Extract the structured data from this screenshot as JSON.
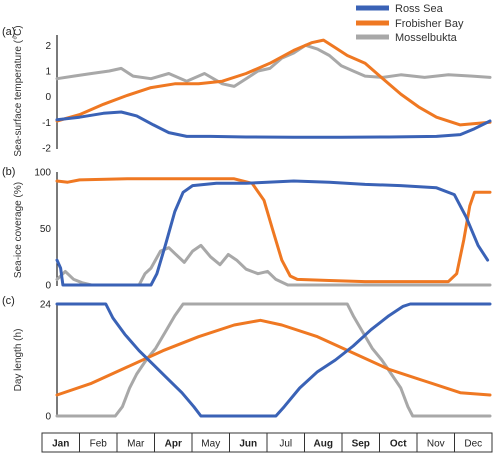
{
  "colors": {
    "ross": "#3a62b6",
    "frob": "#ef7822",
    "moss": "#a8a8a8"
  },
  "legend": [
    "Ross Sea",
    "Frobisher Bay",
    "Mosselbukta"
  ],
  "months": [
    "Jan",
    "Feb",
    "Mar",
    "Apr",
    "May",
    "Jun",
    "Jul",
    "Aug",
    "Sep",
    "Oct",
    "Nov",
    "Dec"
  ],
  "bold_months": [
    "Jan",
    "Apr",
    "Jun",
    "Aug",
    "Sep",
    "Oct"
  ],
  "chart_data": [
    {
      "type": "line",
      "panel": "(a)",
      "ylabel": "Sea-surface temperature (°C)",
      "ylim": [
        -2,
        2.4
      ],
      "yticks": [
        -2,
        -1,
        0,
        1,
        2
      ],
      "x_unit": "day of year",
      "xlim": [
        1,
        365
      ],
      "series": [
        {
          "name": "Ross Sea",
          "points": [
            [
              1,
              -0.9
            ],
            [
              20,
              -0.8
            ],
            [
              40,
              -0.65
            ],
            [
              55,
              -0.6
            ],
            [
              68,
              -0.75
            ],
            [
              82,
              -1.1
            ],
            [
              95,
              -1.4
            ],
            [
              110,
              -1.55
            ],
            [
              130,
              -1.55
            ],
            [
              160,
              -1.57
            ],
            [
              200,
              -1.58
            ],
            [
              240,
              -1.58
            ],
            [
              280,
              -1.57
            ],
            [
              320,
              -1.55
            ],
            [
              340,
              -1.48
            ],
            [
              352,
              -1.25
            ],
            [
              365,
              -0.95
            ]
          ]
        },
        {
          "name": "Frobisher Bay",
          "points": [
            [
              1,
              -0.95
            ],
            [
              20,
              -0.7
            ],
            [
              40,
              -0.3
            ],
            [
              60,
              0.05
            ],
            [
              80,
              0.35
            ],
            [
              100,
              0.5
            ],
            [
              120,
              0.5
            ],
            [
              140,
              0.6
            ],
            [
              160,
              0.9
            ],
            [
              180,
              1.3
            ],
            [
              200,
              1.8
            ],
            [
              215,
              2.1
            ],
            [
              225,
              2.2
            ],
            [
              235,
              1.9
            ],
            [
              245,
              1.6
            ],
            [
              260,
              1.3
            ],
            [
              275,
              0.7
            ],
            [
              290,
              0.1
            ],
            [
              305,
              -0.4
            ],
            [
              320,
              -0.8
            ],
            [
              340,
              -1.1
            ],
            [
              365,
              -1.0
            ]
          ]
        },
        {
          "name": "Mosselbukta",
          "points": [
            [
              1,
              0.7
            ],
            [
              15,
              0.8
            ],
            [
              30,
              0.9
            ],
            [
              45,
              1.0
            ],
            [
              55,
              1.1
            ],
            [
              65,
              0.8
            ],
            [
              80,
              0.7
            ],
            [
              95,
              0.9
            ],
            [
              110,
              0.6
            ],
            [
              125,
              0.9
            ],
            [
              140,
              0.5
            ],
            [
              150,
              0.4
            ],
            [
              160,
              0.7
            ],
            [
              170,
              1.0
            ],
            [
              180,
              1.1
            ],
            [
              190,
              1.5
            ],
            [
              200,
              1.7
            ],
            [
              210,
              2.0
            ],
            [
              220,
              1.85
            ],
            [
              230,
              1.6
            ],
            [
              240,
              1.2
            ],
            [
              250,
              1.0
            ],
            [
              260,
              0.8
            ],
            [
              275,
              0.75
            ],
            [
              290,
              0.85
            ],
            [
              310,
              0.75
            ],
            [
              330,
              0.85
            ],
            [
              350,
              0.8
            ],
            [
              365,
              0.75
            ]
          ]
        }
      ]
    },
    {
      "type": "line",
      "panel": "(b)",
      "ylabel": "Sea-ice coverage (%)",
      "ylim": [
        0,
        100
      ],
      "yticks": [
        0,
        50,
        100
      ],
      "x_unit": "day of year",
      "xlim": [
        1,
        365
      ],
      "series": [
        {
          "name": "Ross Sea",
          "points": [
            [
              1,
              22
            ],
            [
              4,
              15
            ],
            [
              6,
              0
            ],
            [
              80,
              0
            ],
            [
              85,
              10
            ],
            [
              92,
              35
            ],
            [
              100,
              65
            ],
            [
              107,
              82
            ],
            [
              115,
              88
            ],
            [
              135,
              90
            ],
            [
              160,
              90
            ],
            [
              200,
              92
            ],
            [
              230,
              91
            ],
            [
              260,
              89
            ],
            [
              290,
              88
            ],
            [
              320,
              86
            ],
            [
              335,
              80
            ],
            [
              345,
              60
            ],
            [
              355,
              35
            ],
            [
              363,
              22
            ]
          ]
        },
        {
          "name": "Frobisher Bay",
          "points": [
            [
              1,
              92
            ],
            [
              10,
              91
            ],
            [
              20,
              93
            ],
            [
              60,
              94
            ],
            [
              100,
              94
            ],
            [
              150,
              94
            ],
            [
              165,
              90
            ],
            [
              175,
              75
            ],
            [
              182,
              50
            ],
            [
              190,
              22
            ],
            [
              197,
              8
            ],
            [
              203,
              5
            ],
            [
              230,
              4
            ],
            [
              260,
              3
            ],
            [
              300,
              3
            ],
            [
              330,
              3
            ],
            [
              337,
              10
            ],
            [
              343,
              40
            ],
            [
              348,
              70
            ],
            [
              352,
              82
            ],
            [
              365,
              82
            ]
          ]
        },
        {
          "name": "Mosselbukta",
          "points": [
            [
              1,
              5
            ],
            [
              8,
              12
            ],
            [
              15,
              5
            ],
            [
              22,
              2
            ],
            [
              30,
              0
            ],
            [
              70,
              0
            ],
            [
              75,
              10
            ],
            [
              80,
              15
            ],
            [
              88,
              30
            ],
            [
              95,
              33
            ],
            [
              100,
              28
            ],
            [
              108,
              20
            ],
            [
              115,
              30
            ],
            [
              122,
              35
            ],
            [
              130,
              25
            ],
            [
              138,
              18
            ],
            [
              145,
              27
            ],
            [
              152,
              22
            ],
            [
              160,
              14
            ],
            [
              170,
              10
            ],
            [
              178,
              12
            ],
            [
              185,
              5
            ],
            [
              195,
              0
            ],
            [
              365,
              0
            ]
          ]
        }
      ]
    },
    {
      "type": "line",
      "panel": "(c)",
      "ylabel": "Day length (h)",
      "ylim": [
        0,
        24
      ],
      "yticks": [
        0,
        24
      ],
      "x_unit": "day of year",
      "xlim": [
        1,
        365
      ],
      "series": [
        {
          "name": "Ross Sea",
          "points": [
            [
              1,
              24
            ],
            [
              42,
              24
            ],
            [
              48,
              21
            ],
            [
              58,
              17.5
            ],
            [
              70,
              14
            ],
            [
              82,
              11
            ],
            [
              94,
              8
            ],
            [
              106,
              5
            ],
            [
              116,
              2
            ],
            [
              122,
              0
            ],
            [
              185,
              0
            ],
            [
              192,
              2
            ],
            [
              205,
              6
            ],
            [
              220,
              9.5
            ],
            [
              235,
              12
            ],
            [
              250,
              15
            ],
            [
              265,
              18.5
            ],
            [
              280,
              21.5
            ],
            [
              292,
              23.5
            ],
            [
              298,
              24
            ],
            [
              365,
              24
            ]
          ]
        },
        {
          "name": "Frobisher Bay",
          "points": [
            [
              1,
              4.5
            ],
            [
              30,
              7
            ],
            [
              60,
              10.5
            ],
            [
              90,
              14
            ],
            [
              120,
              17
            ],
            [
              150,
              19.5
            ],
            [
              172,
              20.5
            ],
            [
              190,
              19.5
            ],
            [
              220,
              17
            ],
            [
              250,
              13.5
            ],
            [
              280,
              10
            ],
            [
              310,
              7.5
            ],
            [
              340,
              5
            ],
            [
              365,
              4.5
            ]
          ]
        },
        {
          "name": "Mosselbukta",
          "points": [
            [
              1,
              0
            ],
            [
              50,
              0
            ],
            [
              56,
              2
            ],
            [
              62,
              6
            ],
            [
              68,
              9
            ],
            [
              76,
              12
            ],
            [
              84,
              14.5
            ],
            [
              92,
              18
            ],
            [
              100,
              21.5
            ],
            [
              107,
              24
            ],
            [
              245,
              24
            ],
            [
              250,
              21.5
            ],
            [
              258,
              18
            ],
            [
              266,
              14.5
            ],
            [
              274,
              12
            ],
            [
              282,
              9
            ],
            [
              290,
              6
            ],
            [
              296,
              2
            ],
            [
              300,
              0
            ],
            [
              365,
              0
            ]
          ]
        }
      ]
    }
  ]
}
